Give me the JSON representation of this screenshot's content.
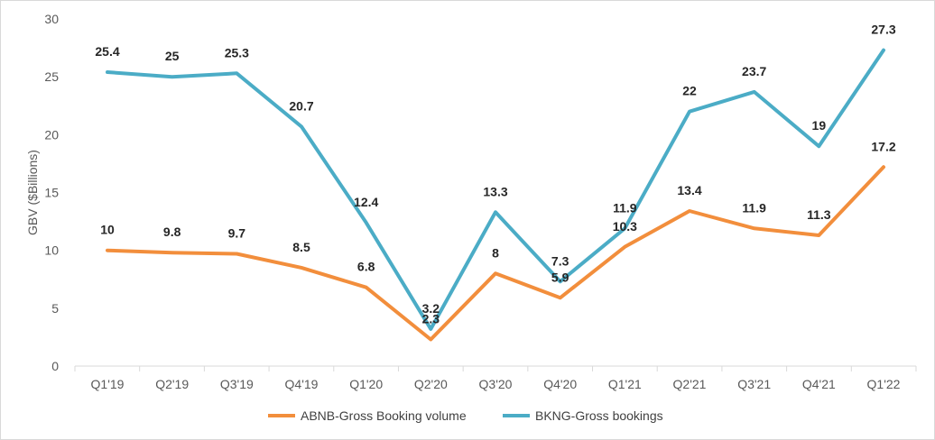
{
  "chart_data": {
    "type": "line",
    "title": "",
    "xlabel": "",
    "ylabel": "GBV ($Billions)",
    "ylim": [
      0,
      30
    ],
    "yticks": [
      0,
      5,
      10,
      15,
      20,
      25,
      30
    ],
    "grid": false,
    "legend_position": "bottom",
    "categories": [
      "Q1'19",
      "Q2'19",
      "Q3'19",
      "Q4'19",
      "Q1'20",
      "Q2'20",
      "Q3'20",
      "Q4'20",
      "Q1'21",
      "Q2'21",
      "Q3'21",
      "Q4'21",
      "Q1'22"
    ],
    "series": [
      {
        "name": "ABNB-Gross Booking volume",
        "color": "#F28E3C",
        "values": [
          10,
          9.8,
          9.7,
          8.5,
          6.8,
          2.3,
          8,
          5.9,
          10.3,
          13.4,
          11.9,
          11.3,
          17.2
        ]
      },
      {
        "name": "BKNG-Gross bookings",
        "color": "#4BACC6",
        "values": [
          25.4,
          25,
          25.3,
          20.7,
          12.4,
          3.2,
          13.3,
          7.3,
          11.9,
          22,
          23.7,
          19,
          27.3
        ]
      }
    ]
  }
}
